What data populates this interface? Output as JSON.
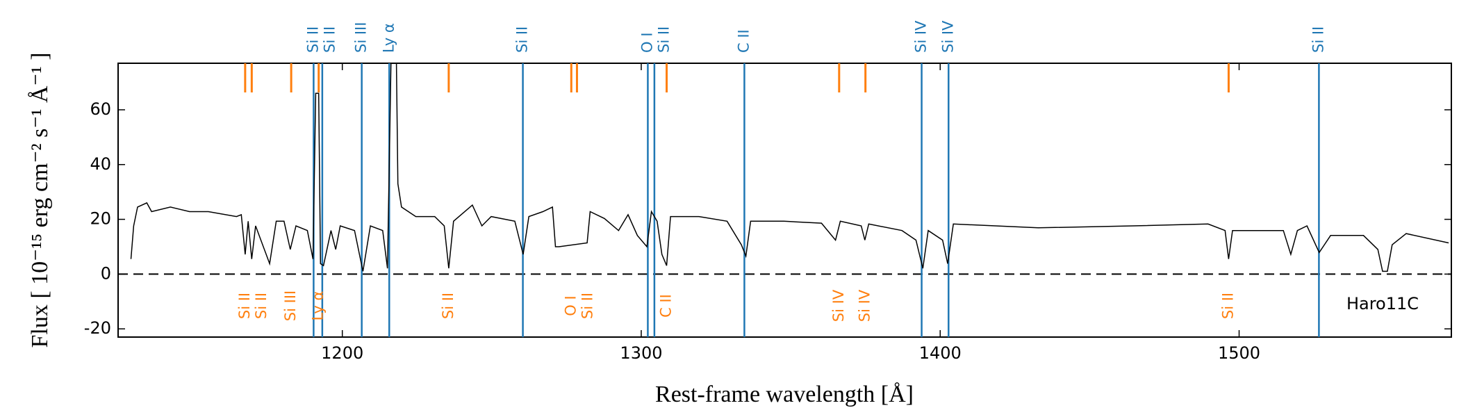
{
  "chart_data": {
    "type": "line",
    "x_label": "Rest-frame wavelength [Å]",
    "y_label": "Flux [ 10⁻¹⁵ erg cm⁻² s⁻¹ Å⁻¹ ]",
    "annotation": "Haro11C",
    "xlim": [
      1125,
      1571
    ],
    "ylim": [
      -23,
      77
    ],
    "xticks": [
      1200,
      1300,
      1400,
      1500
    ],
    "yticks": [
      -20,
      0,
      20,
      40,
      60
    ],
    "hline": 0,
    "color": "#000000",
    "x": [
      1129.3,
      1130.2,
      1131.5,
      1134.6,
      1136.2,
      1142.5,
      1148.9,
      1155.2,
      1164.6,
      1166.2,
      1167.5,
      1168.5,
      1169.7,
      1171,
      1175.7,
      1177.9,
      1180.5,
      1182.6,
      1184.5,
      1188.3,
      1190.2,
      1191.1,
      1192.1,
      1192.7,
      1193.7,
      1196.2,
      1197.8,
      1199.3,
      1204.1,
      1206.9,
      1209.4,
      1213.5,
      1215.1,
      1216.4,
      1218,
      1218.6,
      1219.8,
      1224.6,
      1230.9,
      1234.1,
      1235.6,
      1237.2,
      1243.5,
      1246.7,
      1249.8,
      1257.7,
      1260.5,
      1262.4,
      1267.1,
      1270.3,
      1271.3,
      1272.5,
      1281.9,
      1282.9,
      1287.7,
      1292.4,
      1295.6,
      1298.7,
      1301.9,
      1303.4,
      1305.3,
      1306.9,
      1308.5,
      1309.8,
      1319.3,
      1328.7,
      1333.5,
      1335,
      1336.6,
      1347.7,
      1360.3,
      1365,
      1366.6,
      1373.6,
      1374.8,
      1376.1,
      1387.2,
      1391.9,
      1394.2,
      1396,
      1400.8,
      1402.5,
      1404.4,
      1432.8,
      1464.4,
      1489.6,
      1495.3,
      1496.5,
      1497.8,
      1514.8,
      1517.3,
      1519.5,
      1522.7,
      1526.8,
      1530.6,
      1541.6,
      1546.4,
      1548,
      1549.6,
      1551.2,
      1555.9,
      1570.1
    ],
    "values": [
      5.5,
      17.6,
      24.5,
      26,
      22.8,
      24.5,
      22.8,
      22.8,
      21,
      21.7,
      7.2,
      19.3,
      5.5,
      17.6,
      3.8,
      19.3,
      19.3,
      9,
      17.6,
      15.9,
      5.5,
      66,
      66,
      3.8,
      3.1,
      15.9,
      9,
      17.6,
      15.9,
      1,
      17.6,
      15.9,
      2.1,
      85,
      85,
      33,
      24.5,
      21,
      21,
      17.6,
      2.1,
      19.3,
      25.2,
      17.6,
      21,
      19.3,
      7.2,
      21,
      22.8,
      24.5,
      10,
      10,
      11.4,
      22.8,
      20.3,
      15.9,
      21.7,
      14.1,
      10,
      22.8,
      19.3,
      7.2,
      3.1,
      21,
      21,
      19.3,
      10.7,
      6.6,
      19.3,
      19.3,
      18.6,
      12.4,
      19.3,
      17.6,
      12.4,
      18.3,
      15.9,
      12.4,
      2.1,
      15.9,
      12.4,
      3.8,
      18.3,
      16.9,
      17.6,
      18.3,
      15.9,
      5.5,
      15.9,
      15.9,
      7.2,
      15.9,
      17.6,
      7.9,
      14.1,
      14.1,
      9,
      1,
      1,
      10.7,
      14.8,
      11.4
    ],
    "top_lines": {
      "color": "#1f77b4",
      "lines": [
        {
          "label": "Si II",
          "wavelength": 1190.4
        },
        {
          "label": "Si II",
          "wavelength": 1193.3
        },
        {
          "label": "Si III",
          "wavelength": 1206.5
        },
        {
          "label": "Ly α",
          "wavelength": 1215.7
        },
        {
          "label": "Si II",
          "wavelength": 1260.4
        },
        {
          "label": "O I",
          "wavelength": 1302.2
        },
        {
          "label": "Si II",
          "wavelength": 1304.4
        },
        {
          "label": "C II",
          "wavelength": 1334.5
        },
        {
          "label": "Si IV",
          "wavelength": 1393.8
        },
        {
          "label": "Si IV",
          "wavelength": 1402.8
        },
        {
          "label": "Si II",
          "wavelength": 1526.7
        }
      ]
    },
    "bottom_lines": {
      "color": "#ff7f0e",
      "lines": [
        {
          "label": "Si II",
          "wavelength": 1167.5
        },
        {
          "label": "Si II",
          "wavelength": 1169.7
        },
        {
          "label": "Si III",
          "wavelength": 1182.9
        },
        {
          "label": "Ly α",
          "wavelength": 1192.1
        },
        {
          "label": "Si II",
          "wavelength": 1235.6
        },
        {
          "label": "O I",
          "wavelength": 1276.6
        },
        {
          "label": "Si II",
          "wavelength": 1278.5
        },
        {
          "label": "C II",
          "wavelength": 1308.5
        },
        {
          "label": "Si IV",
          "wavelength": 1366.2
        },
        {
          "label": "Si IV",
          "wavelength": 1375.0
        },
        {
          "label": "Si II",
          "wavelength": 1496.5
        }
      ]
    }
  }
}
